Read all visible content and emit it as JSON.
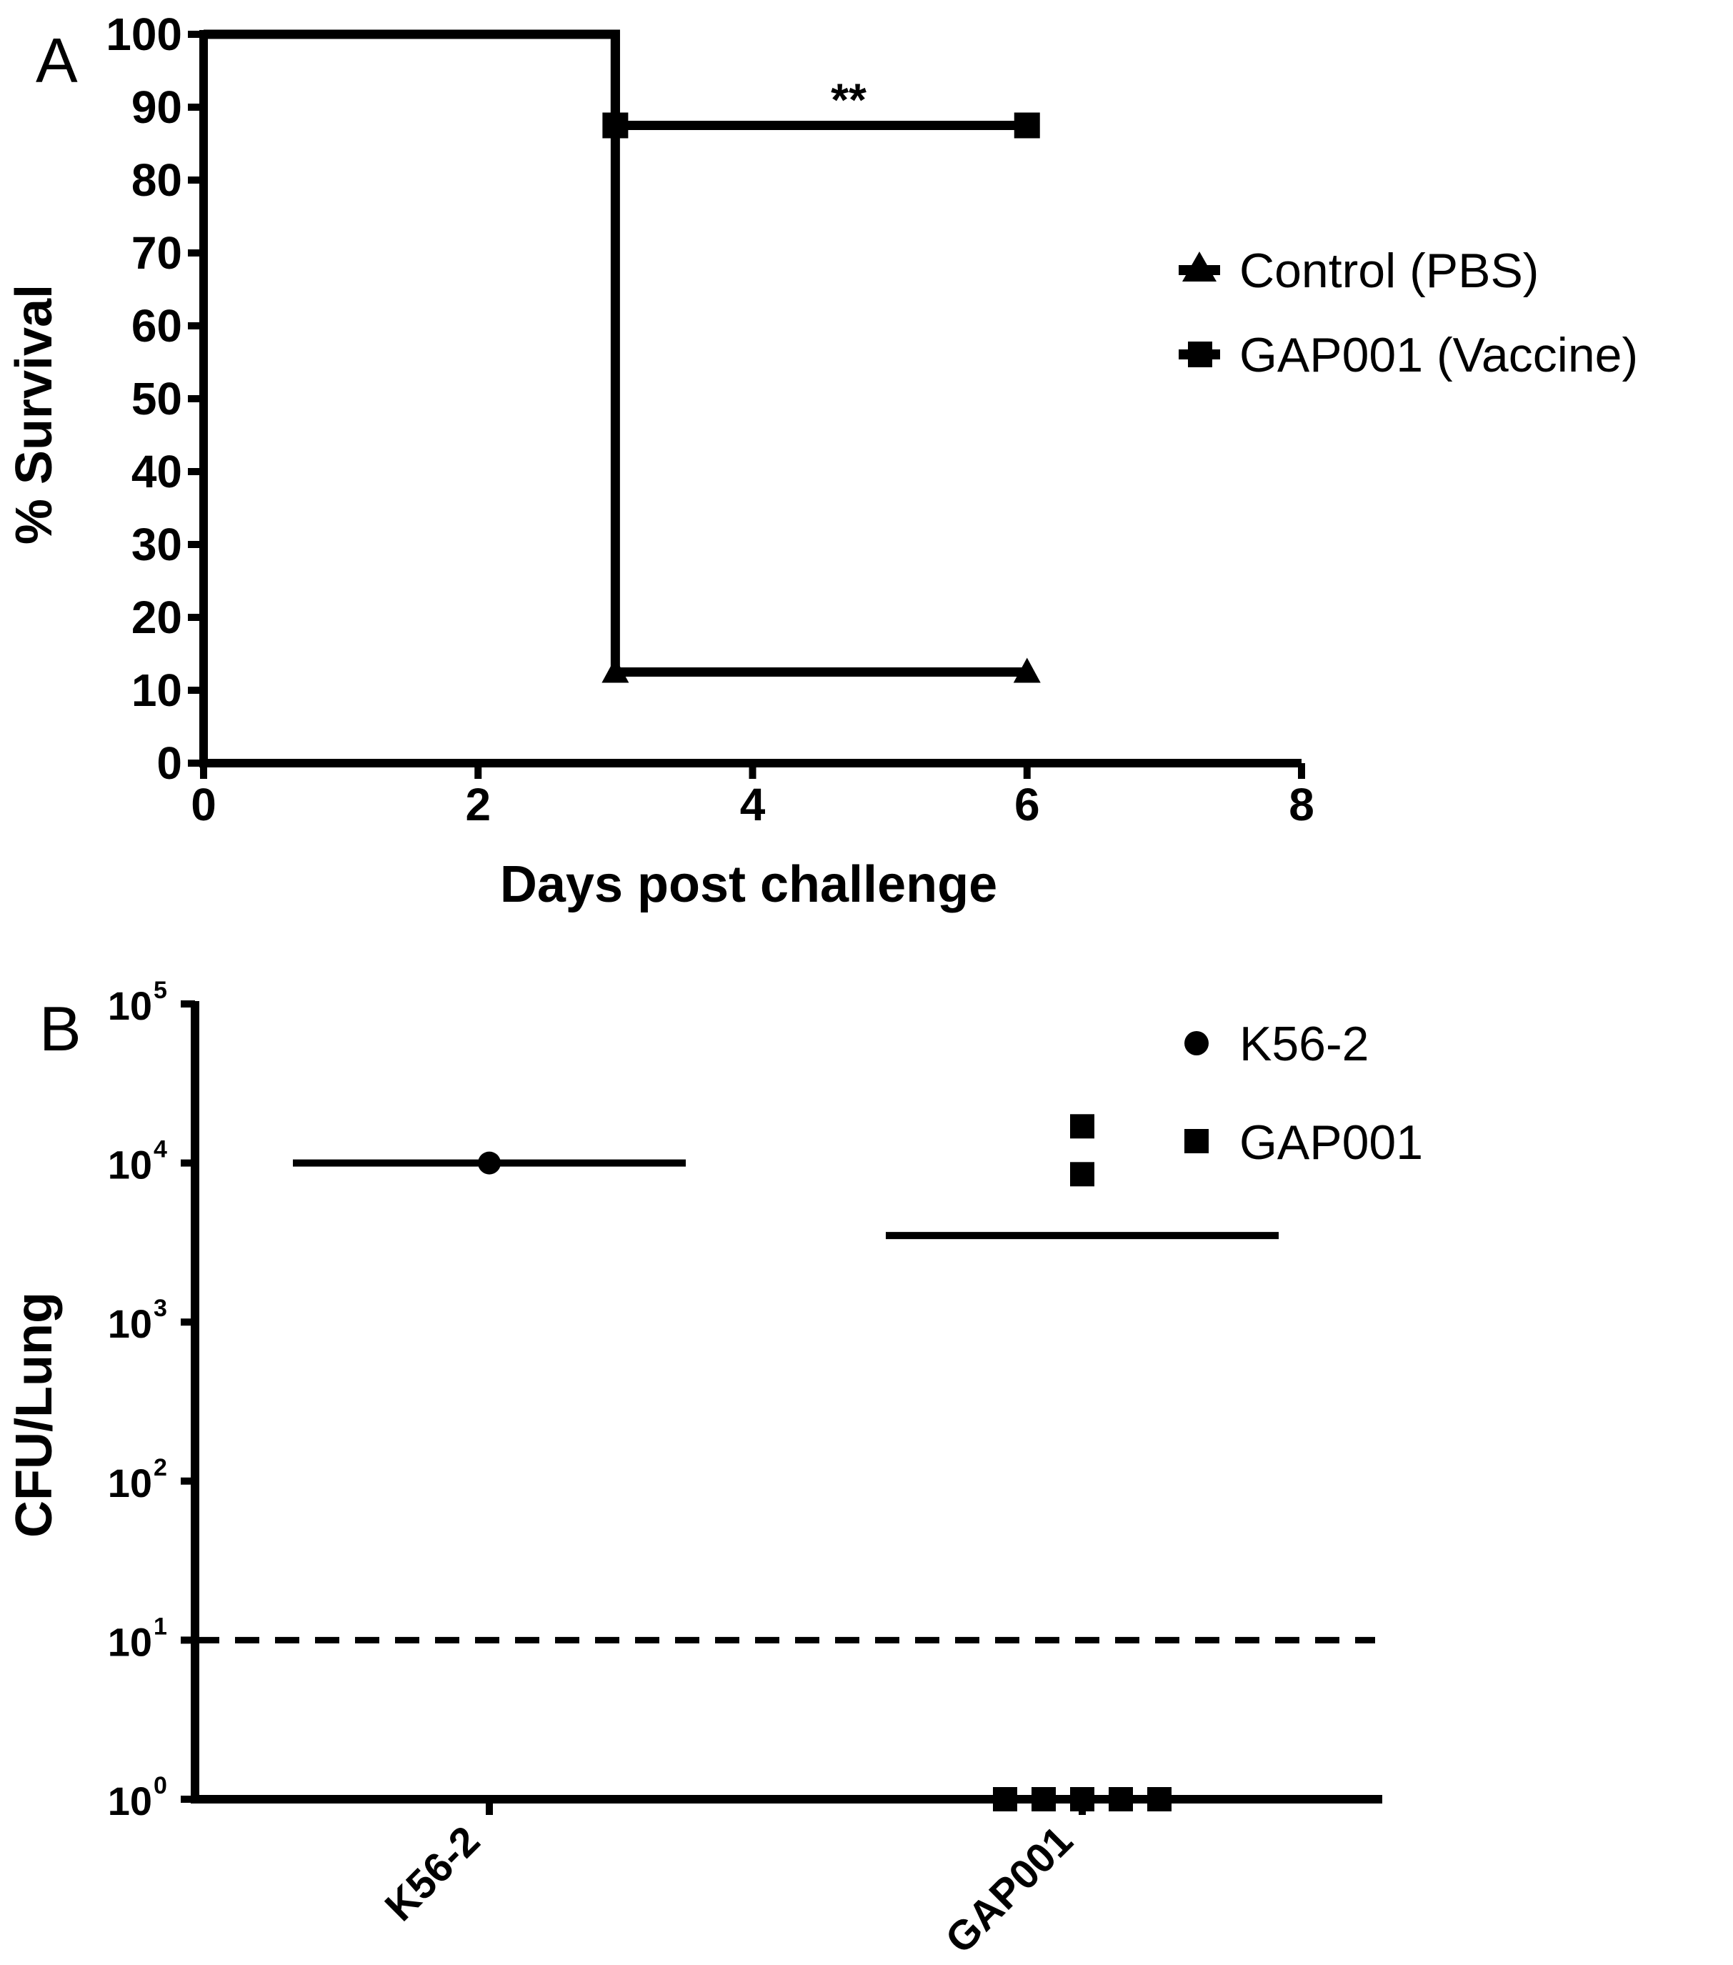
{
  "chart_data": [
    {
      "type": "line",
      "panel": "A",
      "xlabel": "Days post challenge",
      "ylabel": "% Survival",
      "xlim": [
        0,
        8
      ],
      "ylim": [
        0,
        100
      ],
      "xticks": [
        "0",
        "2",
        "4",
        "6",
        "8"
      ],
      "yticks": [
        "0",
        "10",
        "20",
        "30",
        "40",
        "50",
        "60",
        "70",
        "80",
        "90",
        "100"
      ],
      "series": [
        {
          "name": "Control (PBS)",
          "marker": "triangle",
          "x": [
            0,
            3,
            3,
            6
          ],
          "y": [
            100,
            100,
            12.5,
            12.5
          ],
          "marker_x": [
            3,
            6
          ],
          "marker_y": [
            12.5,
            12.5
          ]
        },
        {
          "name": "GAP001 (Vaccine)",
          "marker": "square",
          "x": [
            0,
            3,
            3,
            6
          ],
          "y": [
            100,
            100,
            87.5,
            87.5
          ],
          "marker_x": [
            3,
            6
          ],
          "marker_y": [
            87.5,
            87.5
          ]
        }
      ],
      "annotation": {
        "text": "**",
        "x": 4.7,
        "y": 87.5
      },
      "legend_position": "right"
    },
    {
      "type": "scatter",
      "panel": "B",
      "ylabel": "CFU/Lung",
      "yscale": "log",
      "ylim_log": [
        0,
        5
      ],
      "ytick_base": "10",
      "ytick_exponents": [
        "0",
        "1",
        "2",
        "3",
        "4",
        "5"
      ],
      "categories": [
        "K56-2",
        "GAP001"
      ],
      "series": [
        {
          "name": "K56-2",
          "marker": "circle",
          "category": 0,
          "values": [
            10000
          ],
          "mean": 10000
        },
        {
          "name": "GAP001",
          "marker": "square",
          "category": 1,
          "values": [
            17000,
            8500,
            1,
            1,
            1,
            1,
            1
          ],
          "mean": 3500
        }
      ],
      "detection_limit": 10,
      "legend_position": "top-right"
    }
  ],
  "panelA": {
    "letter": "A"
  },
  "panelB": {
    "letter": "B"
  }
}
